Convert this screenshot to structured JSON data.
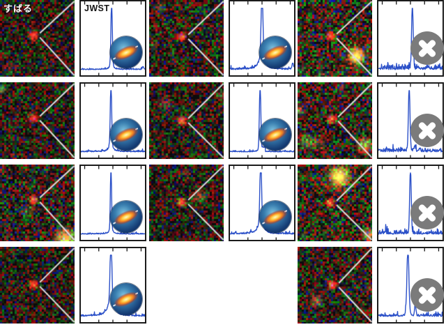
{
  "labels": {
    "subaru": "すばる",
    "jwst": "JWST"
  },
  "colors": {
    "spectrum_line": "#2b50c8",
    "panel_border": "#1b1b1b",
    "reject_gray": "#7b7b7b",
    "wedge_line": "#dcdcdc",
    "source_red": "#e03020",
    "background": "#ffffff"
  },
  "icons": {
    "confirmed": "agn-disk-icon",
    "rejected": "x-circle-icon"
  },
  "chart_data": {
    "type": "line",
    "note": "Eleven JWST spectra: flat baseline with one strong narrow emission line near the panel center; no axis labels or numbers are shown, only tick marks on top and bottom axes.",
    "line_color": "#2b50c8",
    "spectra": [
      {
        "id": "r1c1",
        "outcome": "confirmed",
        "peak_x": 0.48,
        "peak_sigma": 0.01,
        "wing_h": 0.14,
        "wing_w": 0.022,
        "noise": 0.012,
        "extras": [
          [
            0.97,
            0.01,
            0.05
          ]
        ]
      },
      {
        "id": "r1c2",
        "outcome": "confirmed",
        "peak_x": 0.5,
        "peak_sigma": 0.013,
        "wing_h": 0.32,
        "wing_w": 0.04,
        "noise": 0.02,
        "extras": [
          [
            0.98,
            0.012,
            0.1
          ]
        ]
      },
      {
        "id": "r1c3",
        "outcome": "rejected",
        "peak_x": 0.53,
        "peak_sigma": 0.012,
        "wing_h": 0.04,
        "wing_w": 0.02,
        "noise": 0.05,
        "extras": []
      },
      {
        "id": "r2c1",
        "outcome": "confirmed",
        "peak_x": 0.47,
        "peak_sigma": 0.01,
        "wing_h": 0.16,
        "wing_w": 0.028,
        "noise": 0.014,
        "extras": []
      },
      {
        "id": "r2c2",
        "outcome": "confirmed",
        "peak_x": 0.47,
        "peak_sigma": 0.011,
        "wing_h": 0.1,
        "wing_w": 0.02,
        "noise": 0.012,
        "extras": [],
        "step": [
          0.495,
          0.55,
          0.085
        ]
      },
      {
        "id": "r2c3",
        "outcome": "rejected",
        "peak_x": 0.48,
        "peak_sigma": 0.012,
        "wing_h": 0.05,
        "wing_w": 0.02,
        "noise": 0.04,
        "extras": [
          [
            0.57,
            0.012,
            0.07
          ],
          [
            0.64,
            0.01,
            0.04
          ]
        ]
      },
      {
        "id": "r3c1",
        "outcome": "confirmed",
        "peak_x": 0.47,
        "peak_sigma": 0.009,
        "wing_h": 0.14,
        "wing_w": 0.022,
        "noise": 0.013,
        "extras": []
      },
      {
        "id": "r3c2",
        "outcome": "confirmed",
        "peak_x": 0.48,
        "peak_sigma": 0.012,
        "wing_h": 0.28,
        "wing_w": 0.038,
        "noise": 0.02,
        "extras": []
      },
      {
        "id": "r3c3",
        "outcome": "rejected",
        "peak_x": 0.5,
        "peak_sigma": 0.012,
        "wing_h": 0.04,
        "wing_w": 0.018,
        "noise": 0.04,
        "extras": []
      },
      {
        "id": "r4c1",
        "outcome": "confirmed",
        "peak_x": 0.47,
        "peak_sigma": 0.013,
        "wing_h": 0.3,
        "wing_w": 0.05,
        "noise": 0.02,
        "extras": []
      },
      {
        "id": "r4c3",
        "outcome": "rejected",
        "peak_x": 0.46,
        "peak_sigma": 0.015,
        "wing_h": 0.08,
        "wing_w": 0.025,
        "noise": 0.03,
        "extras": [
          [
            0.575,
            0.011,
            0.18
          ]
        ]
      }
    ]
  },
  "panels": [
    {
      "id": "r1c1",
      "row": 1,
      "col": 1,
      "result": "confirmed",
      "seed": 11,
      "gain": 1.0,
      "source": [
        0.45,
        0.46
      ],
      "neighbors": [
        [
          0.15,
          0.9,
          13,
          "#24505a",
          0.3
        ]
      ]
    },
    {
      "id": "r1c2",
      "row": 1,
      "col": 2,
      "result": "confirmed",
      "seed": 22,
      "gain": 1.05,
      "source": [
        0.44,
        0.48
      ],
      "neighbors": [
        [
          0.14,
          0.1,
          11,
          "#3f7a3a",
          0.45
        ],
        [
          0.05,
          0.58,
          10,
          "#56743a",
          0.35
        ]
      ]
    },
    {
      "id": "r1c3",
      "row": 1,
      "col": 3,
      "result": "rejected",
      "seed": 33,
      "gain": 1.25,
      "source": [
        0.44,
        0.47
      ],
      "neighbors": [
        [
          0.79,
          0.73,
          14,
          "#ffd64f",
          0.95
        ],
        [
          0.79,
          0.73,
          26,
          "#bd8d22",
          0.4
        ],
        [
          0.43,
          0.26,
          9,
          "#93301d",
          0.45
        ],
        [
          0.06,
          0.92,
          9,
          "#2f7a50",
          0.45
        ],
        [
          0.3,
          0.97,
          10,
          "#2a6a5a",
          0.4
        ]
      ]
    },
    {
      "id": "r2c1",
      "row": 2,
      "col": 1,
      "result": "confirmed",
      "seed": 44,
      "gain": 1.0,
      "source": [
        0.45,
        0.47
      ],
      "neighbors": [
        [
          0.02,
          0.09,
          8,
          "#58e058",
          0.75
        ]
      ]
    },
    {
      "id": "r2c2",
      "row": 2,
      "col": 2,
      "result": "confirmed",
      "seed": 55,
      "gain": 1.0,
      "source": [
        0.44,
        0.5
      ],
      "neighbors": [
        [
          0.21,
          0.27,
          13,
          "#585272",
          0.4
        ],
        [
          0.96,
          0.17,
          9,
          "#6f5d49",
          0.45
        ]
      ]
    },
    {
      "id": "r2c3",
      "row": 2,
      "col": 3,
      "result": "rejected",
      "seed": 66,
      "gain": 1.2,
      "source": [
        0.46,
        0.48
      ],
      "neighbors": [
        [
          0.13,
          0.77,
          15,
          "#7fa040",
          0.55
        ],
        [
          0.9,
          0.82,
          14,
          "#dcc052",
          0.75
        ],
        [
          0.02,
          0.37,
          9,
          "#c0ae4e",
          0.45
        ],
        [
          0.58,
          0.06,
          9,
          "#2f8070",
          0.35
        ],
        [
          0.3,
          0.8,
          13,
          "#5f8f3f",
          0.35
        ]
      ]
    },
    {
      "id": "r3c1",
      "row": 3,
      "col": 1,
      "result": "confirmed",
      "seed": 77,
      "gain": 1.15,
      "source": [
        0.45,
        0.46
      ],
      "neighbors": [
        [
          0.37,
          0.6,
          12,
          "#4f8040",
          0.45
        ],
        [
          0.88,
          0.98,
          22,
          "#edd052",
          0.9
        ]
      ]
    },
    {
      "id": "r3c2",
      "row": 3,
      "col": 2,
      "result": "confirmed",
      "seed": 88,
      "gain": 1.0,
      "source": [
        0.44,
        0.49
      ],
      "neighbors": [
        [
          0.68,
          0.42,
          12,
          "#5f9350",
          0.5
        ],
        [
          0.5,
          0.1,
          9,
          "#7f3527",
          0.45
        ]
      ]
    },
    {
      "id": "r3c3",
      "row": 3,
      "col": 3,
      "result": "rejected",
      "seed": 99,
      "gain": 1.2,
      "source": [
        0.44,
        0.5
      ],
      "neighbors": [
        [
          0.56,
          0.16,
          17,
          "#ffd64f",
          0.95
        ],
        [
          0.56,
          0.16,
          30,
          "#c99c33",
          0.4
        ],
        [
          0.96,
          0.92,
          13,
          "#dcc052",
          0.65
        ],
        [
          0.08,
          0.93,
          8,
          "#3f8f4f",
          0.5
        ]
      ]
    },
    {
      "id": "r4c1",
      "row": 4,
      "col": 1,
      "result": "confirmed",
      "seed": 110,
      "gain": 0.95,
      "source": [
        0.45,
        0.49
      ],
      "neighbors": []
    },
    {
      "id": "r4c3",
      "row": 4,
      "col": 3,
      "result": "rejected",
      "seed": 121,
      "gain": 1.05,
      "source": [
        0.47,
        0.5
      ],
      "neighbors": [
        [
          0.26,
          0.71,
          13,
          "#b5806d",
          0.45
        ],
        [
          0.97,
          0.54,
          10,
          "#8f3d2a",
          0.45
        ]
      ]
    }
  ]
}
